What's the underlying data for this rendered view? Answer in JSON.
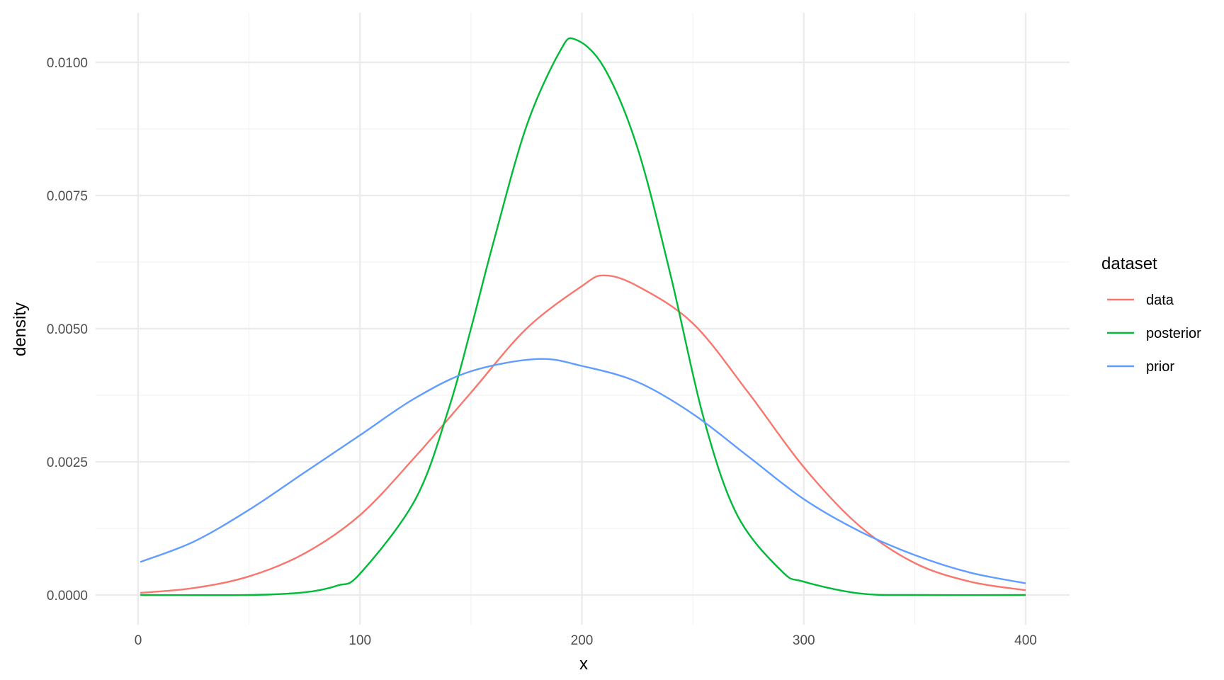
{
  "chart_data": {
    "type": "line",
    "xlabel": "x",
    "ylabel": "density",
    "xlim": [
      0,
      400
    ],
    "ylim": [
      0,
      0.0104
    ],
    "x_ticks": [
      0,
      100,
      200,
      300,
      400
    ],
    "y_ticks": [
      0.0,
      0.0025,
      0.005,
      0.0075,
      0.01
    ],
    "x_tick_labels": [
      "0",
      "100",
      "200",
      "300",
      "400"
    ],
    "y_tick_labels": [
      "0.0000",
      "0.0025",
      "0.0050",
      "0.0075",
      "0.0100"
    ],
    "grid": true,
    "legend": {
      "title": "dataset",
      "placement": "right",
      "entries": [
        "data",
        "posterior",
        "prior"
      ]
    },
    "series": [
      {
        "name": "data",
        "color": "#F8766D",
        "x": [
          1,
          25,
          50,
          75,
          100,
          125,
          150,
          175,
          200,
          210,
          225,
          250,
          275,
          300,
          325,
          350,
          375,
          400
        ],
        "values": [
          4e-05,
          0.00013,
          0.00035,
          0.00078,
          0.0015,
          0.0026,
          0.0038,
          0.005,
          0.0058,
          0.006,
          0.0058,
          0.0051,
          0.0038,
          0.0024,
          0.0013,
          0.0006,
          0.00025,
          9e-05
        ]
      },
      {
        "name": "posterior",
        "color": "#00BA38",
        "x": [
          1,
          50,
          75,
          90,
          100,
          125,
          140,
          150,
          160,
          175,
          190,
          197,
          210,
          225,
          240,
          255,
          270,
          290,
          300,
          325,
          350,
          400
        ],
        "values": [
          0.0,
          0.0,
          5e-05,
          0.00018,
          0.0004,
          0.0018,
          0.0035,
          0.005,
          0.0066,
          0.0088,
          0.0102,
          0.01043,
          0.0099,
          0.0084,
          0.006,
          0.0033,
          0.0015,
          0.00045,
          0.00025,
          3e-05,
          0.0,
          0.0
        ]
      },
      {
        "name": "prior",
        "color": "#619CFF",
        "x": [
          1,
          25,
          50,
          75,
          100,
          125,
          150,
          180,
          200,
          225,
          250,
          275,
          300,
          325,
          350,
          375,
          400
        ],
        "values": [
          0.00062,
          0.001,
          0.0016,
          0.0023,
          0.003,
          0.0037,
          0.0042,
          0.00443,
          0.0043,
          0.004,
          0.0034,
          0.0026,
          0.0018,
          0.0012,
          0.00075,
          0.00042,
          0.00022
        ]
      }
    ]
  }
}
